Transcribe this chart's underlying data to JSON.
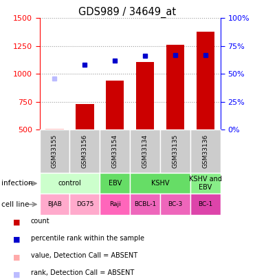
{
  "title": "GDS989 / 34649_at",
  "samples": [
    "GSM33155",
    "GSM33156",
    "GSM33154",
    "GSM33134",
    "GSM33135",
    "GSM33136"
  ],
  "x_positions": [
    0,
    1,
    2,
    3,
    4,
    5
  ],
  "count_values": [
    510,
    730,
    940,
    1110,
    1260,
    1380
  ],
  "count_absent": [
    true,
    false,
    false,
    false,
    false,
    false
  ],
  "rank_values": [
    960,
    1080,
    1120,
    1160,
    1170,
    1170
  ],
  "rank_absent": [
    true,
    false,
    false,
    false,
    false,
    false
  ],
  "ylim_left": [
    500,
    1500
  ],
  "ylim_right": [
    0,
    100
  ],
  "yticks_left": [
    500,
    750,
    1000,
    1250,
    1500
  ],
  "yticks_right": [
    0,
    25,
    50,
    75,
    100
  ],
  "bar_color": "#cc0000",
  "bar_absent_color": "#ffaaaa",
  "rank_color": "#0000cc",
  "rank_absent_color": "#bbbbff",
  "grid_color": "#999999",
  "sample_box_color": "#cccccc",
  "infection_groups": [
    {
      "label": "control",
      "start": 0,
      "end": 1,
      "color": "#ccffcc"
    },
    {
      "label": "EBV",
      "start": 2,
      "end": 2,
      "color": "#66dd66"
    },
    {
      "label": "KSHV",
      "start": 3,
      "end": 4,
      "color": "#66dd66"
    },
    {
      "label": "KSHV and\nEBV",
      "start": 5,
      "end": 5,
      "color": "#88ee88"
    }
  ],
  "cell_lines": [
    {
      "label": "BJAB",
      "col": 0,
      "color": "#ffaacc"
    },
    {
      "label": "DG75",
      "col": 1,
      "color": "#ffaacc"
    },
    {
      "label": "Raji",
      "col": 2,
      "color": "#ff66bb"
    },
    {
      "label": "BCBL-1",
      "col": 3,
      "color": "#ee66bb"
    },
    {
      "label": "BC-3",
      "col": 4,
      "color": "#ee66bb"
    },
    {
      "label": "BC-1",
      "col": 5,
      "color": "#dd44aa"
    }
  ],
  "legend_items": [
    {
      "color": "#cc0000",
      "label": "count"
    },
    {
      "color": "#0000cc",
      "label": "percentile rank within the sample"
    },
    {
      "color": "#ffaaaa",
      "label": "value, Detection Call = ABSENT"
    },
    {
      "color": "#bbbbff",
      "label": "rank, Detection Call = ABSENT"
    }
  ]
}
